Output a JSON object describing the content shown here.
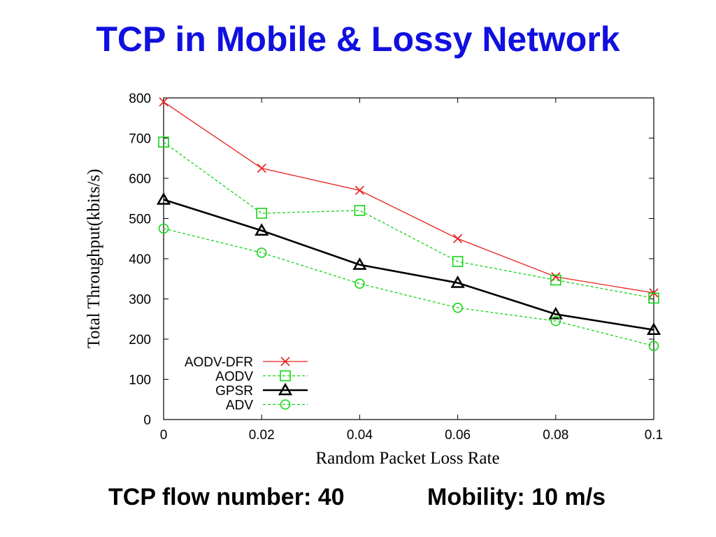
{
  "slide": {
    "title": "TCP in Mobile & Lossy Network",
    "title_color": "#1010e0",
    "footer_left": "TCP flow number: 40",
    "footer_right": "Mobility: 10 m/s"
  },
  "chart_data": {
    "type": "line",
    "xlabel": "Random Packet Loss Rate",
    "ylabel": "Total Throughput(kbits/s)",
    "xlim": [
      0,
      0.1
    ],
    "ylim": [
      0,
      800
    ],
    "x": [
      0,
      0.02,
      0.04,
      0.06,
      0.08,
      0.1
    ],
    "x_tick_labels": [
      "0",
      "0.02",
      "0.04",
      "0.06",
      "0.08",
      "0.1"
    ],
    "y_ticks": [
      0,
      100,
      200,
      300,
      400,
      500,
      600,
      700,
      800
    ],
    "y_tick_labels": [
      "0",
      "100",
      "200",
      "300",
      "400",
      "500",
      "600",
      "700",
      "800"
    ],
    "grid": false,
    "legend_position": "bottom-left",
    "series": [
      {
        "name": "AODV-DFR",
        "values": [
          790,
          625,
          570,
          450,
          355,
          315
        ],
        "color": "#e8231e",
        "marker": "x",
        "dashed": false
      },
      {
        "name": "AODV",
        "values": [
          690,
          513,
          520,
          393,
          347,
          302
        ],
        "color": "#14d414",
        "marker": "square",
        "dashed": true
      },
      {
        "name": "GPSR",
        "values": [
          547,
          470,
          385,
          340,
          262,
          223
        ],
        "color": "#000000",
        "marker": "triangle",
        "dashed": false
      },
      {
        "name": "ADV",
        "values": [
          475,
          415,
          338,
          278,
          245,
          183
        ],
        "color": "#14d414",
        "marker": "circle",
        "dashed": true
      }
    ]
  }
}
